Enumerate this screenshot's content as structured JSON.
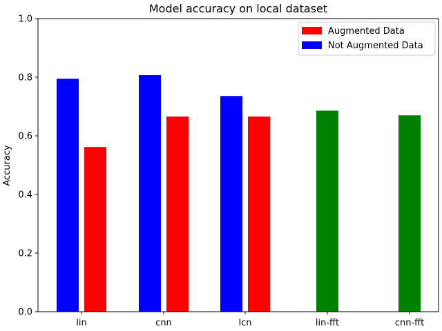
{
  "chart_data": {
    "type": "bar",
    "title": "Model accuracy on local dataset",
    "xlabel": "",
    "ylabel": "Accuracy",
    "categories": [
      "lin",
      "cnn",
      "lcn",
      "lin-fft",
      "cnn-fft"
    ],
    "ylim": [
      0,
      1.0
    ],
    "yticks": [
      "0.0",
      "0.2",
      "0.4",
      "0.6",
      "0.8",
      "1.0"
    ],
    "grid": false,
    "legend_position": "top-right",
    "series": [
      {
        "name": "Not Augmented Data",
        "color": "#0000ff",
        "values": [
          0.795,
          0.807,
          0.736,
          null,
          null
        ]
      },
      {
        "name": "Augmented Data",
        "color": "#ff0000",
        "values": [
          0.562,
          0.666,
          0.666,
          null,
          null
        ]
      },
      {
        "color": "#008000",
        "values": [
          null,
          null,
          null,
          0.686,
          0.67
        ]
      }
    ],
    "legend": [
      {
        "name": "Augmented Data",
        "color": "#ff0000"
      },
      {
        "name": "Not Augmented Data",
        "color": "#0000ff"
      }
    ]
  }
}
